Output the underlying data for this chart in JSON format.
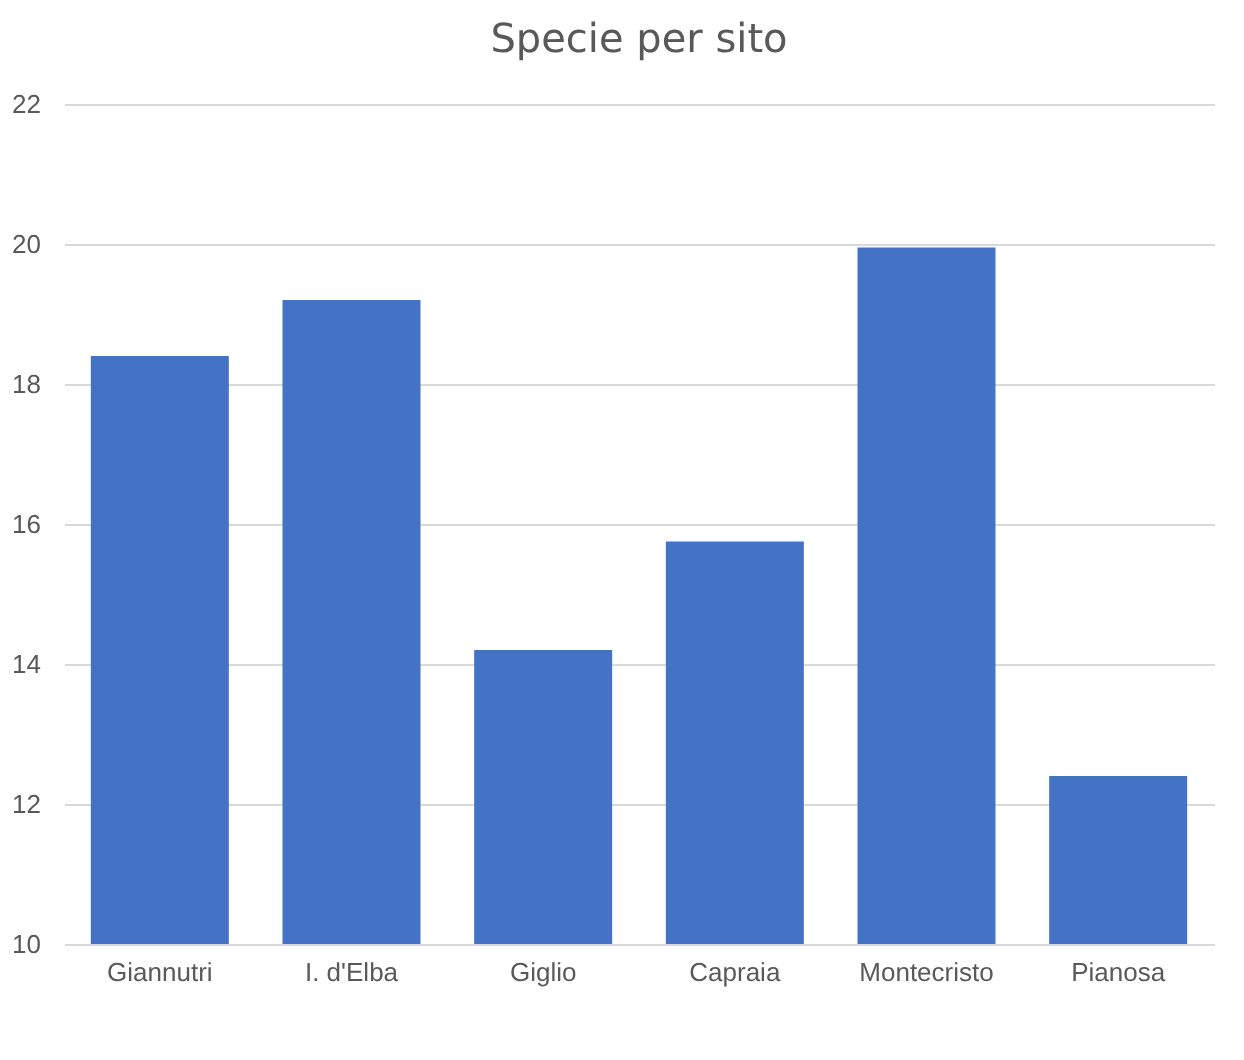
{
  "chart_data": {
    "type": "bar",
    "title": "Specie per sito",
    "categories": [
      "Giannutri",
      "I. d'Elba",
      "Giglio",
      "Capraia",
      "Montecristo",
      "Pianosa"
    ],
    "values": [
      18.4,
      19.2,
      14.2,
      15.75,
      19.95,
      12.4
    ],
    "color": "#4472c4",
    "ylim": [
      10,
      22
    ],
    "yticks": [
      10,
      12,
      14,
      16,
      18,
      20,
      22
    ],
    "grid": "y"
  }
}
